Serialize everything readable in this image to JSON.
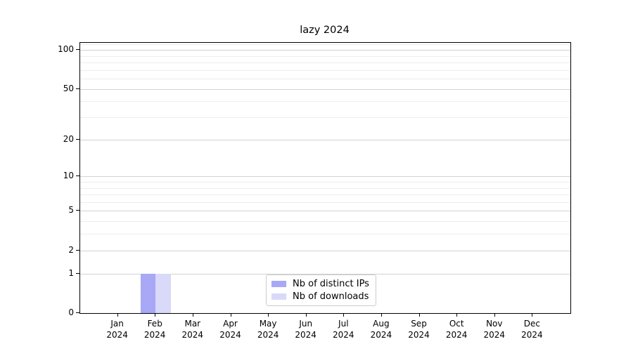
{
  "chart_data": {
    "type": "bar",
    "title": "lazy 2024",
    "categories": [
      "Jan 2024",
      "Feb 2024",
      "Mar 2024",
      "Apr 2024",
      "May 2024",
      "Jun 2024",
      "Jul 2024",
      "Aug 2024",
      "Sep 2024",
      "Oct 2024",
      "Nov 2024",
      "Dec 2024"
    ],
    "series": [
      {
        "name": "Nb of distinct IPs",
        "color": "#a8a8f7",
        "values": [
          0,
          1,
          0,
          0,
          0,
          0,
          0,
          0,
          0,
          0,
          0,
          0
        ]
      },
      {
        "name": "Nb of downloads",
        "color": "#d9d9f9",
        "values": [
          0,
          1,
          0,
          0,
          0,
          0,
          0,
          0,
          0,
          0,
          0,
          0
        ]
      }
    ],
    "xlabel": "",
    "ylabel": "",
    "yscale": "log1p",
    "ylim": [
      0,
      113.3
    ],
    "y_ticks": [
      0,
      1,
      2,
      5,
      10,
      20,
      50,
      100
    ],
    "y_minor_gridlines": [
      3,
      4,
      6,
      7,
      8,
      9,
      30,
      40,
      60,
      70,
      80,
      90,
      110
    ],
    "grid": "horizontal",
    "legend_position": "inside-bottom-center"
  },
  "colors": {
    "major_grid": "#d2d2d2",
    "minor_grid": "#ededed",
    "axis": "#000000",
    "text": "#000000",
    "background": "#ffffff",
    "legend_border": "#cccccc"
  }
}
